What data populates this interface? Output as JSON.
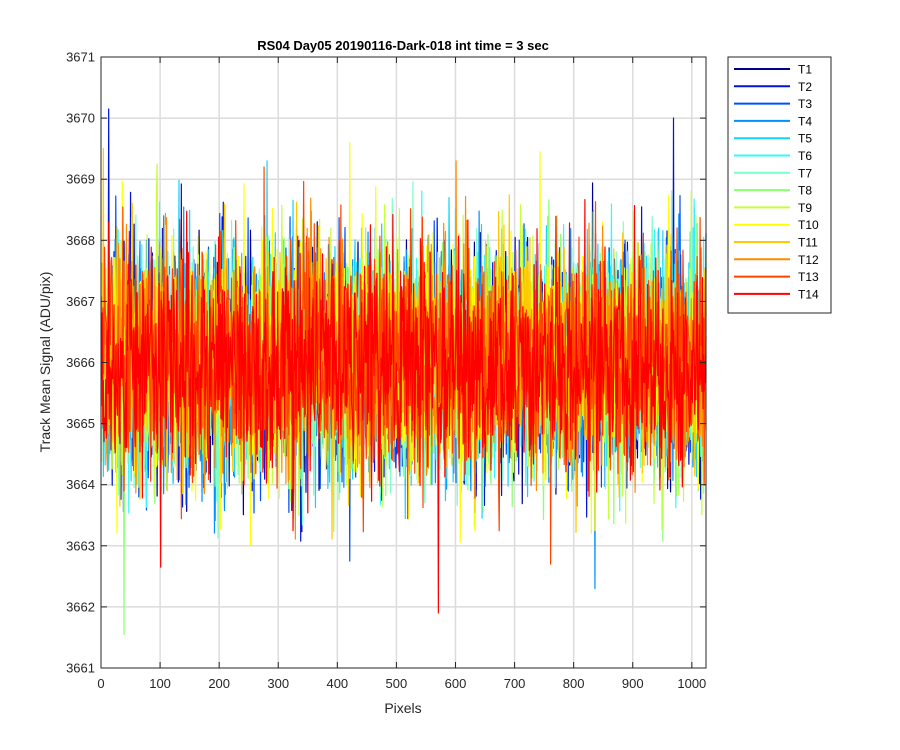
{
  "chart_data": {
    "type": "line",
    "title": "RS04 Day05 20190116-Dark-018 int time = 3 sec",
    "xlabel": "Pixels",
    "ylabel": "Track Mean Signal (ADU/pix)",
    "xlim": [
      0,
      1024
    ],
    "ylim": [
      3661,
      3671
    ],
    "xticks": [
      "0",
      "100",
      "200",
      "300",
      "400",
      "500",
      "600",
      "700",
      "800",
      "900",
      "1000"
    ],
    "yticks": [
      "3661",
      "3662",
      "3663",
      "3664",
      "3665",
      "3666",
      "3667",
      "3668",
      "3669",
      "3670",
      "3671"
    ],
    "grid": true,
    "legend_position": "outside-right",
    "n_points_per_series": 1024,
    "noise_model": {
      "mean": 3666.0,
      "std": 0.9
    },
    "series": [
      {
        "name": "T1",
        "color": "#00008f",
        "peaks": []
      },
      {
        "name": "T2",
        "color": "#0016d4",
        "peaks": [
          {
            "x": 12,
            "y": 3670.15
          },
          {
            "x": 968,
            "y": 3670.0
          }
        ]
      },
      {
        "name": "T3",
        "color": "#0050f5",
        "peaks": [
          {
            "x": 420,
            "y": 3662.75
          }
        ]
      },
      {
        "name": "T4",
        "color": "#0091ff",
        "peaks": [
          {
            "x": 835,
            "y": 3662.3
          }
        ]
      },
      {
        "name": "T5",
        "color": "#14d4ff",
        "peaks": [
          {
            "x": 280,
            "y": 3669.3
          }
        ]
      },
      {
        "name": "T6",
        "color": "#3af7f7",
        "peaks": []
      },
      {
        "name": "T7",
        "color": "#7affc8",
        "peaks": []
      },
      {
        "name": "T8",
        "color": "#8cff73",
        "peaks": [
          {
            "x": 38,
            "y": 3661.55
          }
        ]
      },
      {
        "name": "T9",
        "color": "#c5ff3a",
        "peaks": [
          {
            "x": 94,
            "y": 3669.25
          }
        ]
      },
      {
        "name": "T10",
        "color": "#ffff00",
        "peaks": [
          {
            "x": 420,
            "y": 3669.6
          },
          {
            "x": 742,
            "y": 3669.45
          }
        ]
      },
      {
        "name": "T11",
        "color": "#ffc800",
        "peaks": [
          {
            "x": 3,
            "y": 3669.5
          }
        ]
      },
      {
        "name": "T12",
        "color": "#ff8c00",
        "peaks": [
          {
            "x": 600,
            "y": 3669.3
          }
        ]
      },
      {
        "name": "T13",
        "color": "#ff4400",
        "peaks": [
          {
            "x": 275,
            "y": 3669.2
          },
          {
            "x": 760,
            "y": 3662.7
          }
        ]
      },
      {
        "name": "T14",
        "color": "#ff0000",
        "peaks": [
          {
            "x": 570,
            "y": 3661.9
          },
          {
            "x": 100,
            "y": 3662.65
          }
        ]
      }
    ]
  }
}
